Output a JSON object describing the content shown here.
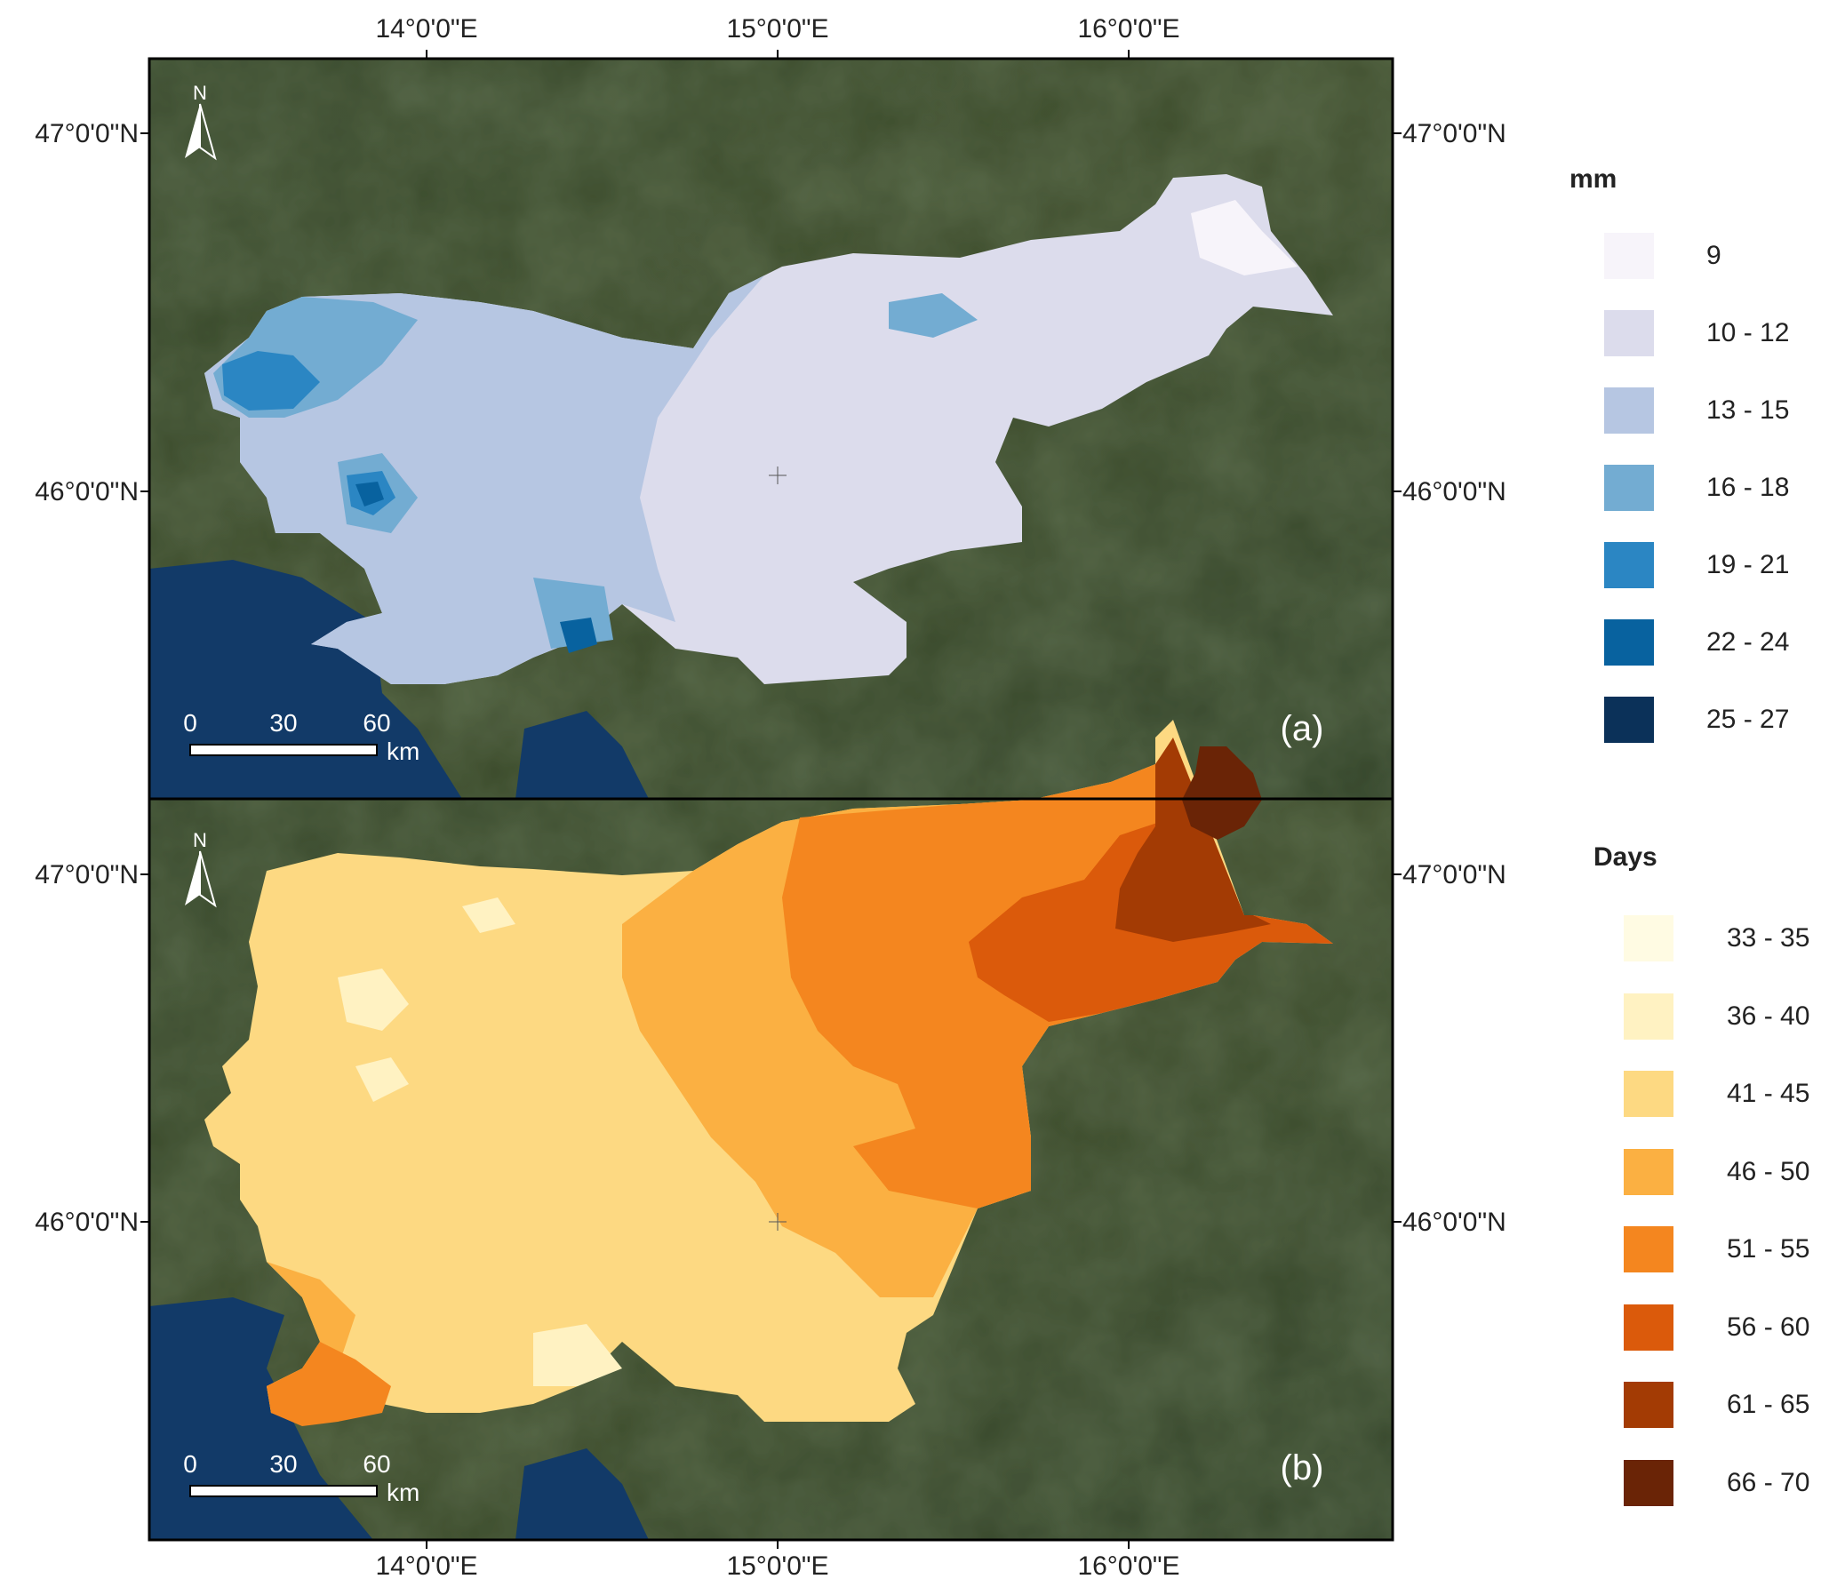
{
  "panels": [
    {
      "label": "(a)",
      "colors": [
        "#f7f4fa",
        "#dcdcec",
        "#b6c6e2",
        "#73acd2",
        "#2b86c3",
        "#08629f",
        "#0b3159"
      ]
    },
    {
      "label": "(b)",
      "colors": [
        "#fffbe3",
        "#fff2c2",
        "#fdd982",
        "#fbb042",
        "#f4861f",
        "#db5a0b",
        "#a33b04",
        "#6a2406"
      ]
    }
  ],
  "axes": {
    "x_ticks": [
      "14°0'0\"E",
      "15°0'0\"E",
      "16°0'0\"E"
    ],
    "y_ticks": [
      "47°0'0\"N",
      "46°0'0\"N"
    ]
  },
  "north_arrow": {
    "letter": "N",
    "icon": "north-arrow-icon"
  },
  "scale_bar": {
    "ticks": [
      "0",
      "30",
      "60"
    ],
    "unit": "km"
  },
  "legends": [
    {
      "title": "mm",
      "entries": [
        {
          "label": "9",
          "color": "#f7f4fa"
        },
        {
          "label": "10 - 12",
          "color": "#dcdcec"
        },
        {
          "label": "13 - 15",
          "color": "#b6c6e2"
        },
        {
          "label": "16 - 18",
          "color": "#73acd2"
        },
        {
          "label": "19 - 21",
          "color": "#2b86c3"
        },
        {
          "label": "22 - 24",
          "color": "#08629f"
        },
        {
          "label": "25 - 27",
          "color": "#0b3159"
        }
      ]
    },
    {
      "title": "Days",
      "entries": [
        {
          "label": "33 - 35",
          "color": "#fffbe3"
        },
        {
          "label": "36 - 40",
          "color": "#fff2c2"
        },
        {
          "label": "41 - 45",
          "color": "#fdd982"
        },
        {
          "label": "46 - 50",
          "color": "#fbb042"
        },
        {
          "label": "51 - 55",
          "color": "#f4861f"
        },
        {
          "label": "56 - 60",
          "color": "#db5a0b"
        },
        {
          "label": "61 - 65",
          "color": "#a33b04"
        },
        {
          "label": "66 - 70",
          "color": "#6a2406"
        }
      ]
    }
  ],
  "basemap": {
    "land": "#3b4a2a",
    "sea": "#123a68"
  }
}
